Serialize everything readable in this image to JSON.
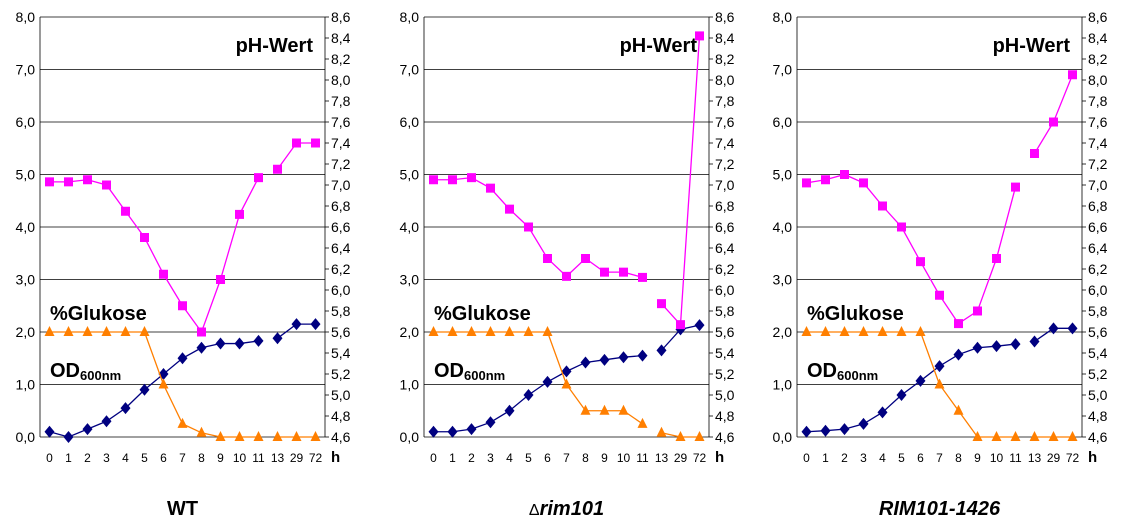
{
  "colors": {
    "od": "#000080",
    "glucose": "#FF7F00",
    "ph": "#FF00FF",
    "grid": "#000000"
  },
  "x_labels": [
    "0",
    "1",
    "2",
    "3",
    "4",
    "5",
    "6",
    "7",
    "8",
    "9",
    "10",
    "11",
    "13",
    "29",
    "72"
  ],
  "x_unit": "h",
  "left_axis": {
    "min": 0,
    "max": 8,
    "ticks": [
      "0,0",
      "1,0",
      "2,0",
      "3,0",
      "4,0",
      "5,0",
      "6,0",
      "7,0",
      "8,0"
    ]
  },
  "right_axis": {
    "min": 4.6,
    "max": 8.6,
    "ticks": [
      "4,6",
      "4,8",
      "5,0",
      "5,2",
      "5,4",
      "5,6",
      "5,8",
      "6,0",
      "6,2",
      "6,4",
      "6,6",
      "6,8",
      "7,0",
      "7,2",
      "7,4",
      "7,6",
      "7,8",
      "8,0",
      "8,2",
      "8,4",
      "8,6"
    ]
  },
  "labels": {
    "ph": "pH-Wert",
    "glucose": "%Glukose",
    "od_main": "OD",
    "od_sub": "600nm"
  },
  "chart_data": [
    {
      "type": "line",
      "title": "WT",
      "title_italic": false,
      "title_delta": false,
      "x": [
        "0",
        "1",
        "2",
        "3",
        "4",
        "5",
        "6",
        "7",
        "8",
        "9",
        "10",
        "11",
        "13",
        "29",
        "72"
      ],
      "grid": true,
      "series": [
        {
          "name": "OD600nm",
          "axis": "left",
          "marker": "diamond",
          "values": [
            0.1,
            0.0,
            0.15,
            0.3,
            0.55,
            0.9,
            1.2,
            1.5,
            1.7,
            1.78,
            1.78,
            1.83,
            1.88,
            2.15,
            2.15
          ]
        },
        {
          "name": "%Glukose",
          "axis": "left",
          "marker": "triangle",
          "values": [
            2.0,
            2.0,
            2.0,
            2.0,
            2.0,
            2.0,
            1.0,
            0.25,
            0.08,
            0.0,
            0.0,
            0.0,
            0.0,
            0.0,
            0.0
          ]
        },
        {
          "name": "pH-Wert",
          "axis": "right",
          "marker": "square",
          "values": [
            7.03,
            7.03,
            7.05,
            7.0,
            6.75,
            6.5,
            6.15,
            5.85,
            5.6,
            6.1,
            6.72,
            7.07,
            7.15,
            7.4,
            7.4
          ]
        }
      ]
    },
    {
      "type": "line",
      "title": "rim101",
      "title_italic": true,
      "title_delta": true,
      "x": [
        "0",
        "1",
        "2",
        "3",
        "4",
        "5",
        "6",
        "7",
        "8",
        "9",
        "10",
        "11",
        "13",
        "29",
        "72"
      ],
      "grid": true,
      "series": [
        {
          "name": "OD600nm",
          "axis": "left",
          "marker": "diamond",
          "values": [
            0.1,
            0.1,
            0.15,
            0.28,
            0.5,
            0.8,
            1.05,
            1.25,
            1.42,
            1.47,
            1.52,
            1.55,
            1.65,
            2.05,
            2.13
          ]
        },
        {
          "name": "%Glukose",
          "axis": "left",
          "marker": "triangle",
          "values": [
            2.0,
            2.0,
            2.0,
            2.0,
            2.0,
            2.0,
            2.0,
            1.0,
            0.5,
            0.5,
            0.5,
            0.25,
            0.08,
            0.0,
            0.0
          ]
        },
        {
          "name": "pH-Wert",
          "axis": "right",
          "marker": "square",
          "values": [
            7.05,
            7.05,
            7.07,
            6.97,
            6.77,
            6.6,
            6.3,
            6.13,
            6.3,
            6.17,
            6.17,
            6.12,
            5.87,
            5.67,
            8.42
          ]
        }
      ]
    },
    {
      "type": "line",
      "title": "RIM101-1426",
      "title_italic": true,
      "title_delta": false,
      "x": [
        "0",
        "1",
        "2",
        "3",
        "4",
        "5",
        "6",
        "7",
        "8",
        "9",
        "10",
        "11",
        "13",
        "29",
        "72"
      ],
      "grid": true,
      "series": [
        {
          "name": "OD600nm",
          "axis": "left",
          "marker": "diamond",
          "values": [
            0.1,
            0.12,
            0.15,
            0.25,
            0.47,
            0.8,
            1.07,
            1.35,
            1.57,
            1.7,
            1.73,
            1.77,
            1.82,
            2.07,
            2.07
          ]
        },
        {
          "name": "%Glukose",
          "axis": "left",
          "marker": "triangle",
          "values": [
            2.0,
            2.0,
            2.0,
            2.0,
            2.0,
            2.0,
            2.0,
            1.0,
            0.5,
            0.0,
            0.0,
            0.0,
            0.0,
            0.0,
            0.0
          ]
        },
        {
          "name": "pH-Wert",
          "axis": "right",
          "marker": "square",
          "values": [
            7.02,
            7.05,
            7.1,
            7.02,
            6.8,
            6.6,
            6.27,
            5.95,
            5.68,
            5.8,
            6.3,
            6.98,
            7.3,
            7.6,
            8.05
          ]
        }
      ]
    }
  ]
}
